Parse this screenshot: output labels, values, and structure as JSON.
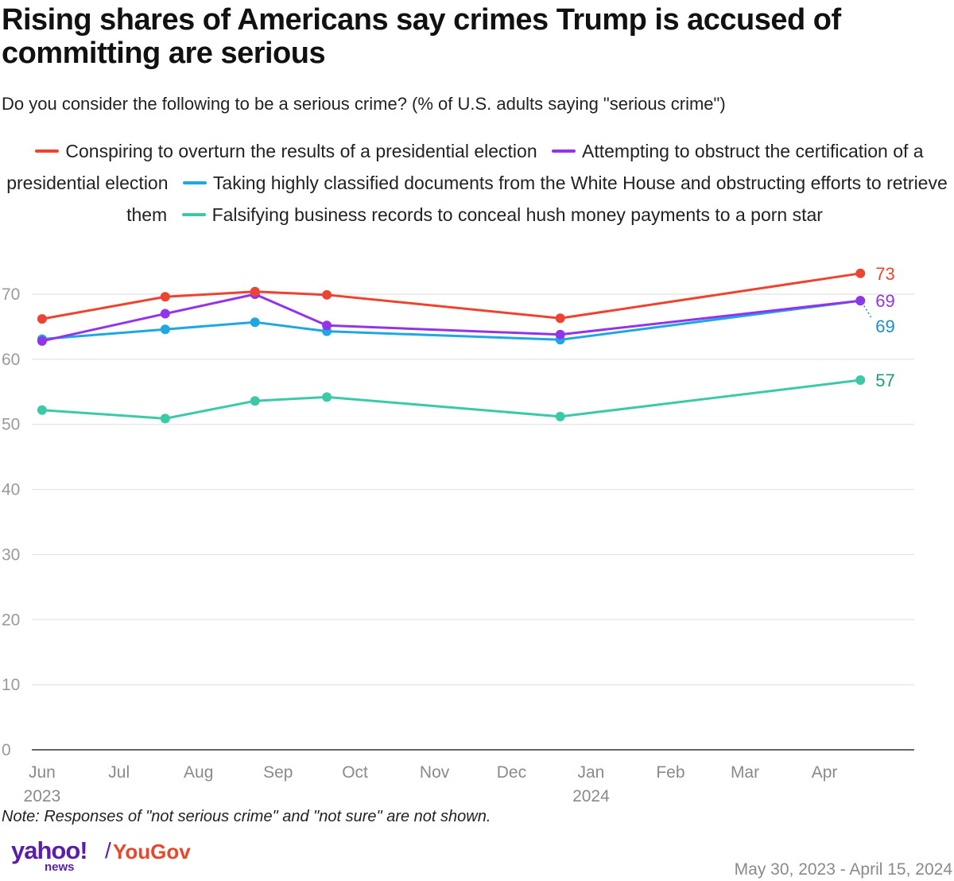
{
  "header": {
    "title": "Rising shares of Americans say crimes Trump is accused of committing are serious",
    "subtitle": "Do you consider the following to be a serious crime? (% of U.S. adults saying \"serious crime\")"
  },
  "footer": {
    "note": "Note: Responses of \"not serious crime\" and \"not sure\" are not shown.",
    "logo_yahoo": "yahoo!",
    "logo_news": "news",
    "logo_slash": "/",
    "logo_yougov": "YouGov",
    "date_range": "May 30, 2023 - April 15, 2024"
  },
  "chart_data": {
    "type": "line",
    "title": "Rising shares of Americans say crimes Trump is accused of committing are serious",
    "subtitle": "Do you consider the following to be a serious crime? (% of U.S. adults saying \"serious crime\")",
    "xlabel": "",
    "ylabel": "",
    "ylim": [
      0,
      70
    ],
    "yticks": [
      0,
      10,
      20,
      30,
      40,
      50,
      60,
      70
    ],
    "xlim": [
      "2023-05-28",
      "2024-05-06"
    ],
    "x_ticks": [
      {
        "date": "2023-06-01",
        "label": "Jun",
        "year": "2023"
      },
      {
        "date": "2023-07-01",
        "label": "Jul",
        "year": ""
      },
      {
        "date": "2023-08-01",
        "label": "Aug",
        "year": ""
      },
      {
        "date": "2023-09-01",
        "label": "Sep",
        "year": ""
      },
      {
        "date": "2023-10-01",
        "label": "Oct",
        "year": ""
      },
      {
        "date": "2023-11-01",
        "label": "Nov",
        "year": ""
      },
      {
        "date": "2023-12-01",
        "label": "Dec",
        "year": ""
      },
      {
        "date": "2024-01-01",
        "label": "Jan",
        "year": "2024"
      },
      {
        "date": "2024-02-01",
        "label": "Feb",
        "year": ""
      },
      {
        "date": "2024-03-01",
        "label": "Mar",
        "year": ""
      },
      {
        "date": "2024-04-01",
        "label": "Apr",
        "year": ""
      }
    ],
    "x": [
      "2023-06-01",
      "2023-07-19",
      "2023-08-23",
      "2023-09-20",
      "2023-12-20",
      "2024-04-15"
    ],
    "grid": true,
    "legend_position": "top",
    "series": [
      {
        "name": "Conspiring to overturn the results of a presidential election",
        "color": "#ec4430",
        "values": [
          66.2,
          69.6,
          70.4,
          69.9,
          66.3,
          73.2
        ],
        "end_label": "73"
      },
      {
        "name": "Attempting to obstruct the certification of a presidential election",
        "color": "#9333ea",
        "values": [
          62.8,
          67.0,
          70.0,
          65.2,
          63.8,
          69.0
        ],
        "end_label": "69"
      },
      {
        "name": "Taking highly classified documents from the White House and obstructing efforts to retrieve them",
        "color": "#1ea7e3",
        "values": [
          63.1,
          64.6,
          65.7,
          64.3,
          63.0,
          69.0
        ],
        "end_label": "69"
      },
      {
        "name": "Falsifying business records to conceal hush money payments to a porn star",
        "color": "#3cc9a7",
        "values": [
          52.2,
          50.9,
          53.6,
          54.2,
          51.2,
          56.8
        ],
        "end_label": "57"
      }
    ],
    "end_label_colors": [
      "#ec4430",
      "#9333ea",
      "#1a8fc7",
      "#1e9a80"
    ]
  }
}
